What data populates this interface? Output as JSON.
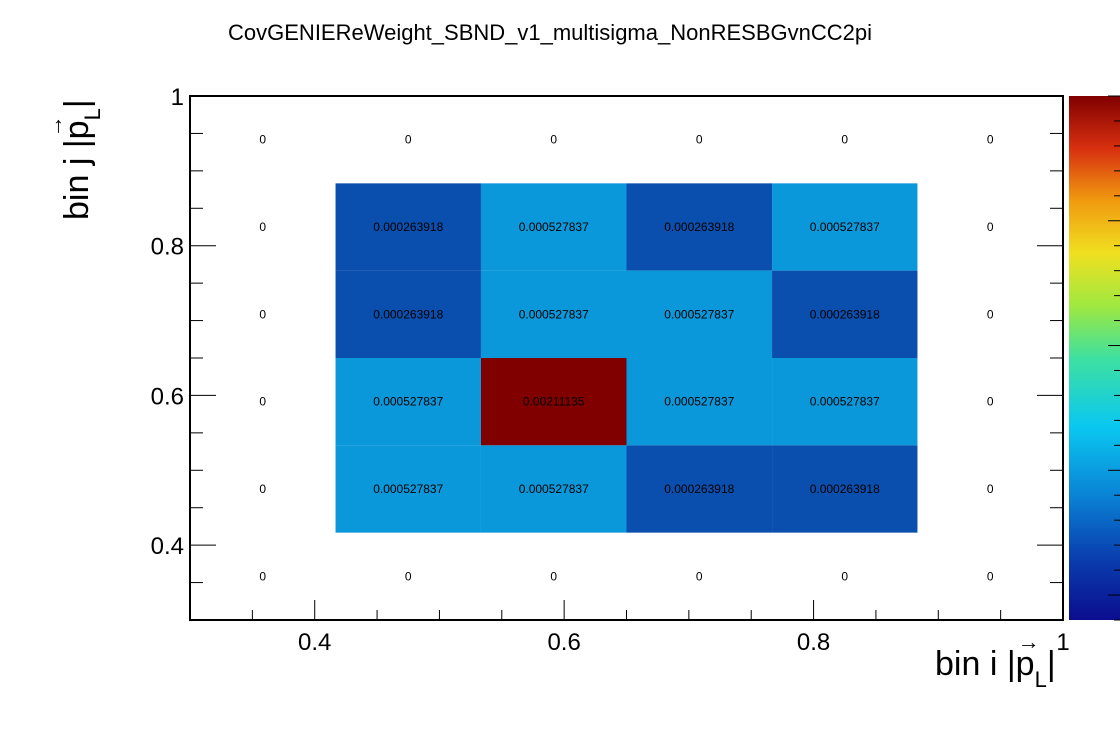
{
  "title": "CovGENIEReWeight_SBND_v1_multisigma_NonRESBGvnCC2pi",
  "axis": {
    "x_title_prefix": "bin i |",
    "x_title_p": "p",
    "x_title_sub": "L",
    "x_title_suffix": "|",
    "y_title_prefix": "bin j |",
    "y_title_p": "p",
    "y_title_sub": "L",
    "y_title_suffix": "|",
    "arrow": "→"
  },
  "chart_data": {
    "type": "heatmap",
    "title": "CovGENIEReWeight_SBND_v1_multisigma_NonRESBGvnCC2pi",
    "xlim": [
      0.3,
      1.0
    ],
    "ylim": [
      0.3,
      1.0
    ],
    "x_ticks": [
      "0.4",
      "0.6",
      "0.8",
      "1"
    ],
    "y_ticks": [
      "0.4",
      "0.6",
      "0.8",
      "1"
    ],
    "x_edges": [
      0.3,
      0.4167,
      0.5333,
      0.65,
      0.7667,
      0.8833,
      1.0
    ],
    "y_edges": [
      0.3,
      0.4167,
      0.5333,
      0.65,
      0.7667,
      0.8833,
      1.0
    ],
    "z_range": [
      0,
      0.00211135
    ],
    "colormap": "rainbow",
    "rows_top_to_bottom": [
      [
        "0",
        "0",
        "0",
        "0",
        "0",
        "0"
      ],
      [
        "0",
        "0.000263918",
        "0.000527837",
        "0.000263918",
        "0.000527837",
        "0"
      ],
      [
        "0",
        "0.000263918",
        "0.000527837",
        "0.000527837",
        "0.000263918",
        "0"
      ],
      [
        "0",
        "0.000527837",
        "0.00211135",
        "0.000527837",
        "0.000527837",
        "0"
      ],
      [
        "0",
        "0.000527837",
        "0.000527837",
        "0.000263918",
        "0.000263918",
        "0"
      ],
      [
        "0",
        "0",
        "0",
        "0",
        "0",
        "0"
      ]
    ]
  },
  "colors": {
    "low": "#0a4fad",
    "mid": "#0a98da",
    "high": "#800000"
  }
}
